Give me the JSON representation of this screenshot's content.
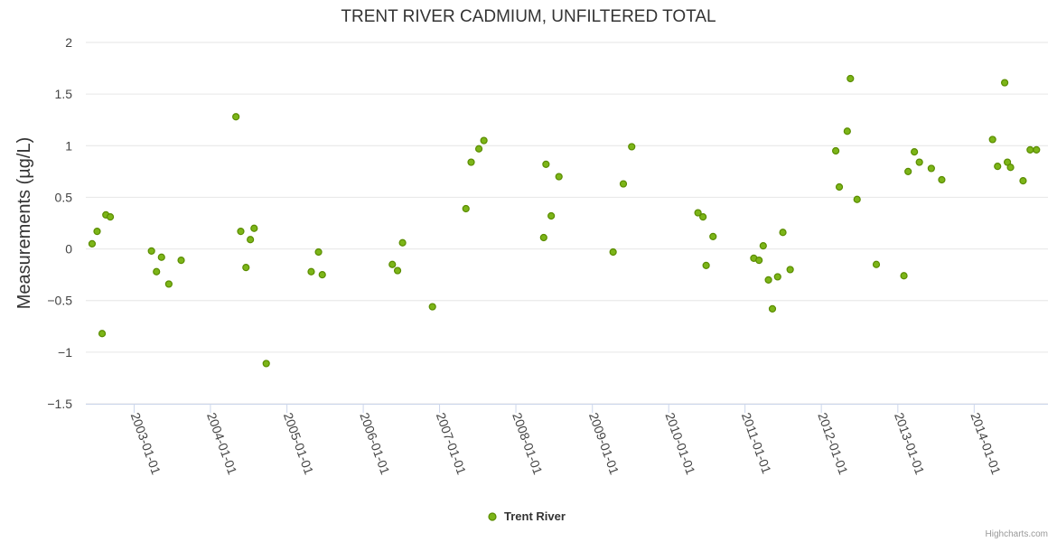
{
  "chart_data": {
    "type": "scatter",
    "title": "TRENT RIVER CADMIUM, UNFILTERED TOTAL",
    "ylabel": "Measurements (µg/L)",
    "xlabel": "",
    "ylim": [
      -1.5,
      2
    ],
    "yticks": [
      "2",
      "1.5",
      "1",
      "0.5",
      "0",
      "−0.5",
      "−1",
      "−1.5"
    ],
    "yticks_values": [
      2,
      1.5,
      1,
      0.5,
      0,
      -0.5,
      -1,
      -1.5
    ],
    "xlim": [
      "2002-05-15",
      "2014-12-20"
    ],
    "xticks": [
      "2003-01-01",
      "2004-01-01",
      "2005-01-01",
      "2006-01-01",
      "2007-01-01",
      "2008-01-01",
      "2009-01-01",
      "2010-01-01",
      "2011-01-01",
      "2012-01-01",
      "2013-01-01",
      "2014-01-01"
    ],
    "grid": true,
    "legend_position": "bottom-center",
    "series": [
      {
        "name": "Trent River",
        "color": "#7cb518",
        "marker_stroke": "#5a8c00",
        "points": [
          [
            "2002-06-14",
            0.05
          ],
          [
            "2002-07-08",
            0.17
          ],
          [
            "2002-08-01",
            -0.82
          ],
          [
            "2002-08-19",
            0.33
          ],
          [
            "2002-09-09",
            0.31
          ],
          [
            "2003-03-25",
            -0.02
          ],
          [
            "2003-04-18",
            -0.22
          ],
          [
            "2003-05-12",
            -0.08
          ],
          [
            "2003-06-16",
            -0.34
          ],
          [
            "2003-08-14",
            -0.11
          ],
          [
            "2004-05-02",
            1.28
          ],
          [
            "2004-05-25",
            0.17
          ],
          [
            "2004-06-19",
            -0.18
          ],
          [
            "2004-07-10",
            0.09
          ],
          [
            "2004-07-28",
            0.2
          ],
          [
            "2004-09-24",
            -1.11
          ],
          [
            "2005-04-27",
            -0.22
          ],
          [
            "2005-06-01",
            -0.03
          ],
          [
            "2005-06-19",
            -0.25
          ],
          [
            "2006-05-20",
            -0.15
          ],
          [
            "2006-06-14",
            -0.21
          ],
          [
            "2006-07-08",
            0.06
          ],
          [
            "2006-11-28",
            -0.56
          ],
          [
            "2007-05-07",
            0.39
          ],
          [
            "2007-06-01",
            0.84
          ],
          [
            "2007-07-08",
            0.97
          ],
          [
            "2007-08-01",
            1.05
          ],
          [
            "2008-05-13",
            0.11
          ],
          [
            "2008-05-24",
            0.82
          ],
          [
            "2008-06-18",
            0.32
          ],
          [
            "2008-07-25",
            0.7
          ],
          [
            "2009-04-10",
            -0.03
          ],
          [
            "2009-05-29",
            0.63
          ],
          [
            "2009-07-08",
            0.99
          ],
          [
            "2010-05-21",
            0.35
          ],
          [
            "2010-06-14",
            0.31
          ],
          [
            "2010-06-29",
            -0.16
          ],
          [
            "2010-08-01",
            0.12
          ],
          [
            "2011-02-12",
            -0.09
          ],
          [
            "2011-03-09",
            -0.11
          ],
          [
            "2011-03-29",
            0.03
          ],
          [
            "2011-04-23",
            -0.3
          ],
          [
            "2011-05-12",
            -0.58
          ],
          [
            "2011-06-06",
            -0.27
          ],
          [
            "2011-07-01",
            0.16
          ],
          [
            "2011-08-05",
            -0.2
          ],
          [
            "2012-03-10",
            0.95
          ],
          [
            "2012-03-27",
            0.6
          ],
          [
            "2012-05-04",
            1.14
          ],
          [
            "2012-05-19",
            1.65
          ],
          [
            "2012-06-20",
            0.48
          ],
          [
            "2012-09-20",
            -0.15
          ],
          [
            "2013-01-30",
            -0.26
          ],
          [
            "2013-02-19",
            0.75
          ],
          [
            "2013-03-21",
            0.94
          ],
          [
            "2013-04-14",
            0.84
          ],
          [
            "2013-06-10",
            0.78
          ],
          [
            "2013-07-30",
            0.67
          ],
          [
            "2014-03-30",
            1.06
          ],
          [
            "2014-04-23",
            0.8
          ],
          [
            "2014-05-27",
            1.61
          ],
          [
            "2014-06-09",
            0.84
          ],
          [
            "2014-06-24",
            0.79
          ],
          [
            "2014-08-23",
            0.66
          ],
          [
            "2014-09-26",
            0.96
          ],
          [
            "2014-10-26",
            0.96
          ]
        ]
      }
    ]
  },
  "credits": "Highcharts.com"
}
